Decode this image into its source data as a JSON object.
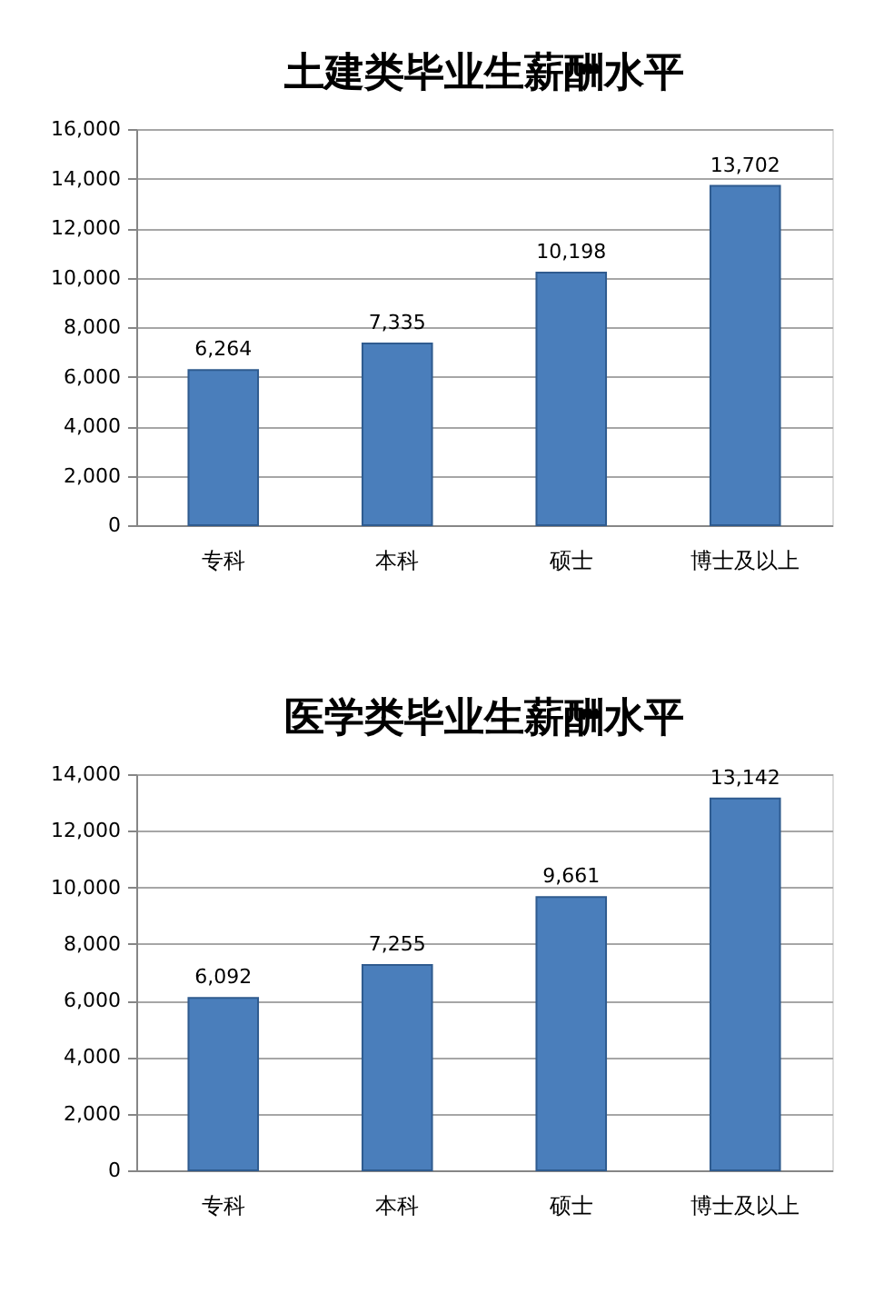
{
  "chart_data": [
    {
      "type": "bar",
      "title": "土建类毕业生薪酬水平",
      "categories": [
        "专科",
        "本科",
        "硕士",
        "博士及以上"
      ],
      "values": [
        6264,
        7335,
        10198,
        13702
      ],
      "value_labels": [
        "6,264",
        "7,335",
        "10,198",
        "13,702"
      ],
      "color": "#4a7ebb",
      "ylim": [
        0,
        16000
      ],
      "yticks": [
        0,
        {
          "value": 2000,
          "label": "2,000"
        },
        {
          "value": 4000,
          "label": "4,000"
        },
        {
          "value": 6000,
          "label": "6,000"
        },
        {
          "value": 8000,
          "label": "8,000"
        },
        {
          "value": 10000,
          "label": "10,000"
        },
        {
          "value": 12000,
          "label": "12,000"
        },
        {
          "value": 14000,
          "label": "14,000"
        },
        {
          "value": 16000,
          "label": "16,000"
        }
      ],
      "grid": "y"
    },
    {
      "type": "bar",
      "title": "医学类毕业生薪酬水平",
      "categories": [
        "专科",
        "本科",
        "硕士",
        "博士及以上"
      ],
      "values": [
        6092,
        7255,
        9661,
        13142
      ],
      "value_labels": [
        "6,092",
        "7,255",
        "9,661",
        "13,142"
      ],
      "color": "#4a7ebb",
      "ylim": [
        0,
        14000
      ],
      "yticks": [
        0,
        {
          "value": 2000,
          "label": "2,000"
        },
        {
          "value": 4000,
          "label": "4,000"
        },
        {
          "value": 6000,
          "label": "6,000"
        },
        {
          "value": 8000,
          "label": "8,000"
        },
        {
          "value": 10000,
          "label": "10,000"
        },
        {
          "value": 12000,
          "label": "12,000"
        },
        {
          "value": 14000,
          "label": "14,000"
        }
      ],
      "grid": "y"
    }
  ]
}
